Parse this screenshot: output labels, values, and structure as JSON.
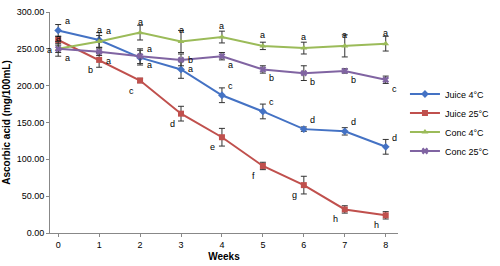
{
  "chart_data": {
    "type": "line",
    "x_label": "Weeks",
    "y_label": "Ascorbic acid (mg/100mL)",
    "x": [
      0,
      1,
      2,
      3,
      4,
      5,
      6,
      7,
      8
    ],
    "xlim": [
      -0.2,
      8.3
    ],
    "xticks": [
      0,
      1,
      2,
      3,
      4,
      5,
      6,
      7,
      8
    ],
    "ylim": [
      0,
      300
    ],
    "yticks": [
      {
        "value": 0,
        "label": "0.00"
      },
      {
        "value": 50,
        "label": "50.00"
      },
      {
        "value": 100,
        "label": "100.00"
      },
      {
        "value": 150,
        "label": "150.00"
      },
      {
        "value": 200,
        "label": "200.00"
      },
      {
        "value": 250,
        "label": "250.00"
      },
      {
        "value": 300,
        "label": "300.00"
      }
    ],
    "grid": false,
    "legend": "right",
    "series": [
      {
        "name": "Juice 4°C",
        "color": "#4472c4",
        "marker": "diamond",
        "values": [
          275,
          262,
          238,
          222,
          187,
          165,
          141,
          138,
          117
        ],
        "error": [
          8,
          10,
          10,
          12,
          10,
          10,
          3,
          5,
          10
        ],
        "letters": [
          "a",
          "a",
          "a",
          "b",
          "c",
          "c",
          "d",
          "d",
          "d"
        ]
      },
      {
        "name": "Juice 25°C",
        "color": "#c0504d",
        "marker": "square",
        "values": [
          262,
          235,
          207,
          162,
          130,
          91,
          65,
          32,
          24
        ],
        "error": [
          5,
          10,
          3,
          10,
          12,
          5,
          12,
          5,
          5
        ],
        "letters": [
          "a",
          "b",
          "c",
          "d",
          "e",
          "f",
          "g",
          "h",
          "h"
        ]
      },
      {
        "name": "Conc 4°C",
        "color": "#9bbb59",
        "marker": "triangle-up",
        "values": [
          250,
          260,
          272,
          260,
          266,
          254,
          251,
          254,
          257
        ],
        "error": [
          10,
          8,
          10,
          15,
          8,
          5,
          8,
          15,
          10
        ],
        "letters": [
          "a",
          "a",
          "a",
          "a",
          "a",
          "a",
          "a",
          "a",
          "a"
        ]
      },
      {
        "name": "Conc 25°C",
        "color": "#8064a2",
        "marker": "x",
        "values": [
          250,
          246,
          240,
          235,
          240,
          222,
          217,
          220,
          208
        ],
        "error": [
          5,
          5,
          10,
          8,
          5,
          5,
          10,
          3,
          5
        ],
        "letters": [
          "a",
          "a",
          "a",
          "a",
          "a",
          "b",
          "b",
          "b",
          "c"
        ]
      }
    ]
  }
}
